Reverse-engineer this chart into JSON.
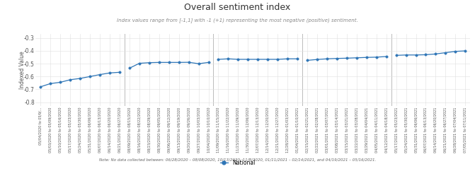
{
  "title": "Overall sentiment index",
  "subtitle": "Index values range from [-1,1] with -1 (+1) representing the most negative (positive) sentiment.",
  "ylabel": "Indexed Value",
  "note": "Note: No data collected between: 06/28/2020 – 08/08/2020, 10/13/2020 -11/8/2020, 01/11/2021 – 02/14/2021, and 04/19/2021 – 05/16/2021.",
  "legend_label": "National",
  "yticks": [
    -0.8,
    -0.7,
    -0.6,
    -0.5,
    -0.4,
    -0.3
  ],
  "line_color": "#2E75B6",
  "marker_color": "#2E75B6",
  "vline_color": "#BBBBBB",
  "x_labels": [
    "05/04/2020 to 05/9/...",
    "05/03/2020 to 05/09/2020",
    "05/10/2020 to 05/16/2020",
    "05/17/2020 to 05/23/2020",
    "05/24/2020 to 05/30/2020",
    "05/31/2020 to 06/06/2020",
    "06/07/2020 to 06/13/2020",
    "06/14/2020 to 06/20/2020",
    "06/21/2020 to 06/27/2020",
    "08/09/2020 to 08/15/2020",
    "08/16/2020 to 08/22/2020",
    "08/23/2020 to 08/29/2020",
    "08/30/2020 to 09/05/2020",
    "09/06/2020 to 09/12/2020",
    "09/13/2020 to 09/19/2020",
    "09/20/2020 to 09/26/2020",
    "09/27/2020 to 10/03/2020",
    "10/04/2020 to 10/10/2020",
    "11/09/2020 to 11/15/2020",
    "11/16/2020 to 11/22/2020",
    "11/23/2020 to 11/29/2020",
    "11/30/2020 to 12/06/2020",
    "12/07/2020 to 12/13/2020",
    "12/14/2020 to 12/20/2020",
    "12/21/2020 to 12/27/2020",
    "12/28/2020 to 01/03/2021",
    "01/04/2021 to 01/10/2021",
    "02/15/2021 to 02/21/2021",
    "02/22/2021 to 02/28/2021",
    "03/01/2021 to 03/07/2021",
    "03/08/2021 to 03/14/2021",
    "03/15/2021 to 03/21/2021",
    "03/22/2021 to 03/28/2021",
    "03/29/2021 to 04/04/2021",
    "04/05/2021 to 04/11/2021",
    "04/12/2021 to 04/18/2021",
    "05/17/2021 to 05/23/2021",
    "05/24/2021 to 05/30/2021",
    "05/31/2021 to 06/06/2021",
    "06/07/2021 to 06/13/2021",
    "06/14/2021 to 06/20/2021",
    "06/21/2021 to 06/27/2021",
    "06/28/2021 to 07/04/2021",
    "07/05/2021 to 07/11/2021"
  ],
  "segments": [
    {
      "indices": [
        0,
        1,
        2,
        3,
        4,
        5,
        6,
        7,
        8
      ],
      "values": [
        -0.68,
        -0.655,
        -0.645,
        -0.625,
        -0.615,
        -0.6,
        -0.585,
        -0.572,
        -0.567
      ]
    },
    {
      "indices": [
        9,
        10,
        11,
        12,
        13,
        14,
        15,
        16,
        17
      ],
      "values": [
        -0.535,
        -0.497,
        -0.492,
        -0.49,
        -0.49,
        -0.49,
        -0.489,
        -0.5,
        -0.49
      ]
    },
    {
      "indices": [
        18,
        19,
        20,
        21,
        22,
        23,
        24,
        25,
        26
      ],
      "values": [
        -0.466,
        -0.462,
        -0.466,
        -0.466,
        -0.466,
        -0.466,
        -0.466,
        -0.462,
        -0.462
      ]
    },
    {
      "indices": [
        27,
        28,
        29,
        30,
        31,
        32,
        33,
        34,
        35
      ],
      "values": [
        -0.474,
        -0.467,
        -0.462,
        -0.459,
        -0.457,
        -0.454,
        -0.451,
        -0.449,
        -0.444
      ]
    },
    {
      "indices": [
        36,
        37,
        38,
        39,
        40,
        41,
        42,
        43
      ],
      "values": [
        -0.435,
        -0.432,
        -0.432,
        -0.43,
        -0.424,
        -0.414,
        -0.404,
        -0.4
      ]
    }
  ],
  "vline_indices": [
    8.5,
    17.5,
    26.5,
    35.5
  ],
  "background_color": "#FFFFFF",
  "grid_color": "#E0E0E0"
}
